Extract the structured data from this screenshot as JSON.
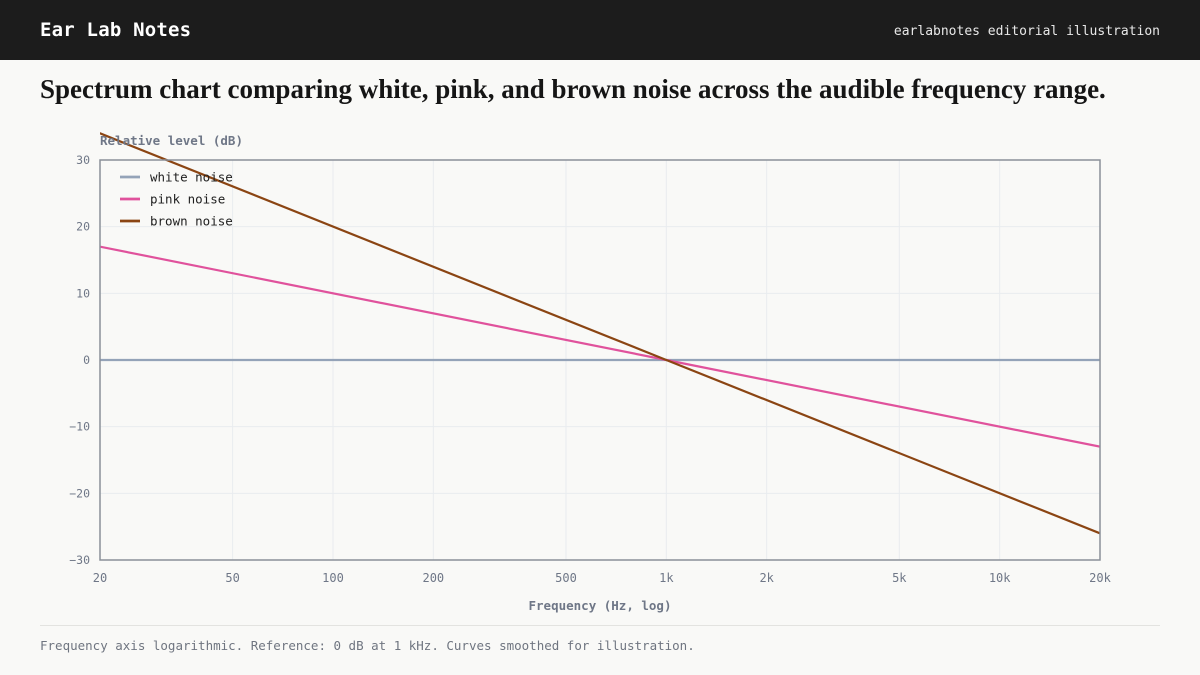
{
  "header": {
    "brand": "Ear Lab Notes",
    "tagline": "earlabnotes editorial illustration"
  },
  "headline": "Spectrum chart comparing white, pink, and brown noise across the audible frequency range.",
  "footnote": "Frequency axis logarithmic. Reference: 0 dB at 1 kHz. Curves smoothed for illustration.",
  "chart_data": {
    "type": "line",
    "title": "",
    "xlabel": "Frequency (Hz, log)",
    "ylabel": "Relative level (dB)",
    "xscale": "log",
    "xlim": [
      20,
      20000
    ],
    "ylim": [
      -30,
      30
    ],
    "xticks": [
      {
        "value": 20,
        "label": "20"
      },
      {
        "value": 50,
        "label": "50"
      },
      {
        "value": 100,
        "label": "100"
      },
      {
        "value": 200,
        "label": "200"
      },
      {
        "value": 500,
        "label": "500"
      },
      {
        "value": 1000,
        "label": "1k"
      },
      {
        "value": 2000,
        "label": "2k"
      },
      {
        "value": 5000,
        "label": "5k"
      },
      {
        "value": 10000,
        "label": "10k"
      },
      {
        "value": 20000,
        "label": "20k"
      }
    ],
    "yticks": [
      {
        "value": 30,
        "label": "30"
      },
      {
        "value": 20,
        "label": "20"
      },
      {
        "value": 10,
        "label": "10"
      },
      {
        "value": 0,
        "label": "0"
      },
      {
        "value": -10,
        "label": "−10"
      },
      {
        "value": -20,
        "label": "−20"
      },
      {
        "value": -30,
        "label": "−30"
      }
    ],
    "grid": true,
    "legend_position": "top-left",
    "series": [
      {
        "name": "white noise",
        "color": "#94a3b8",
        "x": [
          20,
          1000,
          20000
        ],
        "y": [
          0,
          0,
          0
        ]
      },
      {
        "name": "pink noise",
        "color": "#e0529c",
        "x": [
          20,
          1000,
          20000
        ],
        "y": [
          17,
          0,
          -13
        ]
      },
      {
        "name": "brown noise",
        "color": "#8b4513",
        "x": [
          20,
          1000,
          20000
        ],
        "y": [
          34,
          0,
          -26
        ]
      }
    ]
  }
}
